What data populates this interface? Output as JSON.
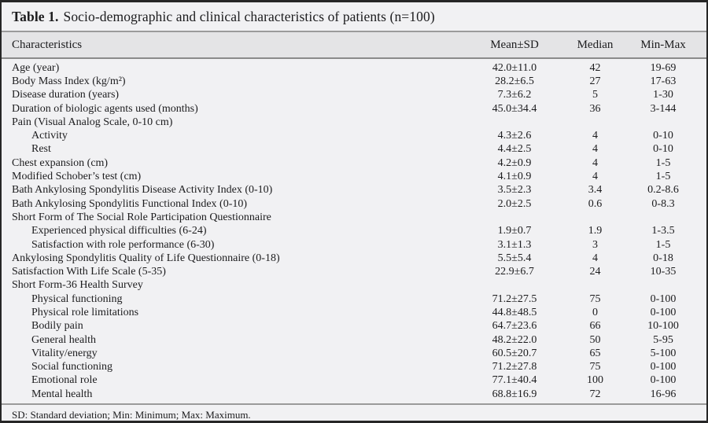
{
  "table": {
    "title_label": "Table 1.",
    "title_text": "Socio-demographic and clinical characteristics of patients (n=100)",
    "columns": [
      "Characteristics",
      "Mean±SD",
      "Median",
      "Min-Max"
    ],
    "rows": [
      {
        "label": "Age (year)",
        "indent": false,
        "mean_sd": "42.0±11.0",
        "median": "42",
        "min_max": "19-69"
      },
      {
        "label": "Body Mass Index (kg/m²)",
        "indent": false,
        "mean_sd": "28.2±6.5",
        "median": "27",
        "min_max": "17-63"
      },
      {
        "label": "Disease duration (years)",
        "indent": false,
        "mean_sd": "7.3±6.2",
        "median": "5",
        "min_max": "1-30"
      },
      {
        "label": "Duration of biologic agents used (months)",
        "indent": false,
        "mean_sd": "45.0±34.4",
        "median": "36",
        "min_max": "3-144"
      },
      {
        "label": "Pain (Visual Analog Scale, 0-10 cm)",
        "indent": false,
        "mean_sd": "",
        "median": "",
        "min_max": ""
      },
      {
        "label": "Activity",
        "indent": true,
        "mean_sd": "4.3±2.6",
        "median": "4",
        "min_max": "0-10"
      },
      {
        "label": "Rest",
        "indent": true,
        "mean_sd": "4.4±2.5",
        "median": "4",
        "min_max": "0-10"
      },
      {
        "label": "Chest expansion (cm)",
        "indent": false,
        "mean_sd": "4.2±0.9",
        "median": "4",
        "min_max": "1-5"
      },
      {
        "label": "Modified Schober’s test (cm)",
        "indent": false,
        "mean_sd": "4.1±0.9",
        "median": "4",
        "min_max": "1-5"
      },
      {
        "label": "Bath Ankylosing Spondylitis Disease Activity Index (0-10)",
        "indent": false,
        "mean_sd": "3.5±2.3",
        "median": "3.4",
        "min_max": "0.2-8.6"
      },
      {
        "label": "Bath Ankylosing Spondylitis Functional Index (0-10)",
        "indent": false,
        "mean_sd": "2.0±2.5",
        "median": "0.6",
        "min_max": "0-8.3"
      },
      {
        "label": "Short Form of The Social Role Participation Questionnaire",
        "indent": false,
        "mean_sd": "",
        "median": "",
        "min_max": ""
      },
      {
        "label": "Experienced physical difficulties (6-24)",
        "indent": true,
        "mean_sd": "1.9±0.7",
        "median": "1.9",
        "min_max": "1-3.5"
      },
      {
        "label": "Satisfaction with role performance (6-30)",
        "indent": true,
        "mean_sd": "3.1±1.3",
        "median": "3",
        "min_max": "1-5"
      },
      {
        "label": "Ankylosing Spondylitis Quality of Life Questionnaire (0-18)",
        "indent": false,
        "mean_sd": "5.5±5.4",
        "median": "4",
        "min_max": "0-18"
      },
      {
        "label": "Satisfaction With Life Scale (5-35)",
        "indent": false,
        "mean_sd": "22.9±6.7",
        "median": "24",
        "min_max": "10-35"
      },
      {
        "label": "Short Form-36 Health Survey",
        "indent": false,
        "mean_sd": "",
        "median": "",
        "min_max": ""
      },
      {
        "label": "Physical functioning",
        "indent": true,
        "mean_sd": "71.2±27.5",
        "median": "75",
        "min_max": "0-100"
      },
      {
        "label": "Physical role limitations",
        "indent": true,
        "mean_sd": "44.8±48.5",
        "median": "0",
        "min_max": "0-100"
      },
      {
        "label": "Bodily pain",
        "indent": true,
        "mean_sd": "64.7±23.6",
        "median": "66",
        "min_max": "10-100"
      },
      {
        "label": "General health",
        "indent": true,
        "mean_sd": "48.2±22.0",
        "median": "50",
        "min_max": "5-95"
      },
      {
        "label": "Vitality/energy",
        "indent": true,
        "mean_sd": "60.5±20.7",
        "median": "65",
        "min_max": "5-100"
      },
      {
        "label": "Social functioning",
        "indent": true,
        "mean_sd": "71.2±27.8",
        "median": "75",
        "min_max": "0-100"
      },
      {
        "label": "Emotional role",
        "indent": true,
        "mean_sd": "77.1±40.4",
        "median": "100",
        "min_max": "0-100"
      },
      {
        "label": "Mental health",
        "indent": true,
        "mean_sd": "68.8±16.9",
        "median": "72",
        "min_max": "16-96"
      }
    ],
    "footnote": "SD: Standard deviation; Min: Minimum; Max: Maximum."
  },
  "colors": {
    "figure_background": "#f1f1f3",
    "header_row_background": "#e4e4e6",
    "rule_gray": "#9a9a9a",
    "outer_border": "#262626",
    "text": "#1c1c1e"
  }
}
